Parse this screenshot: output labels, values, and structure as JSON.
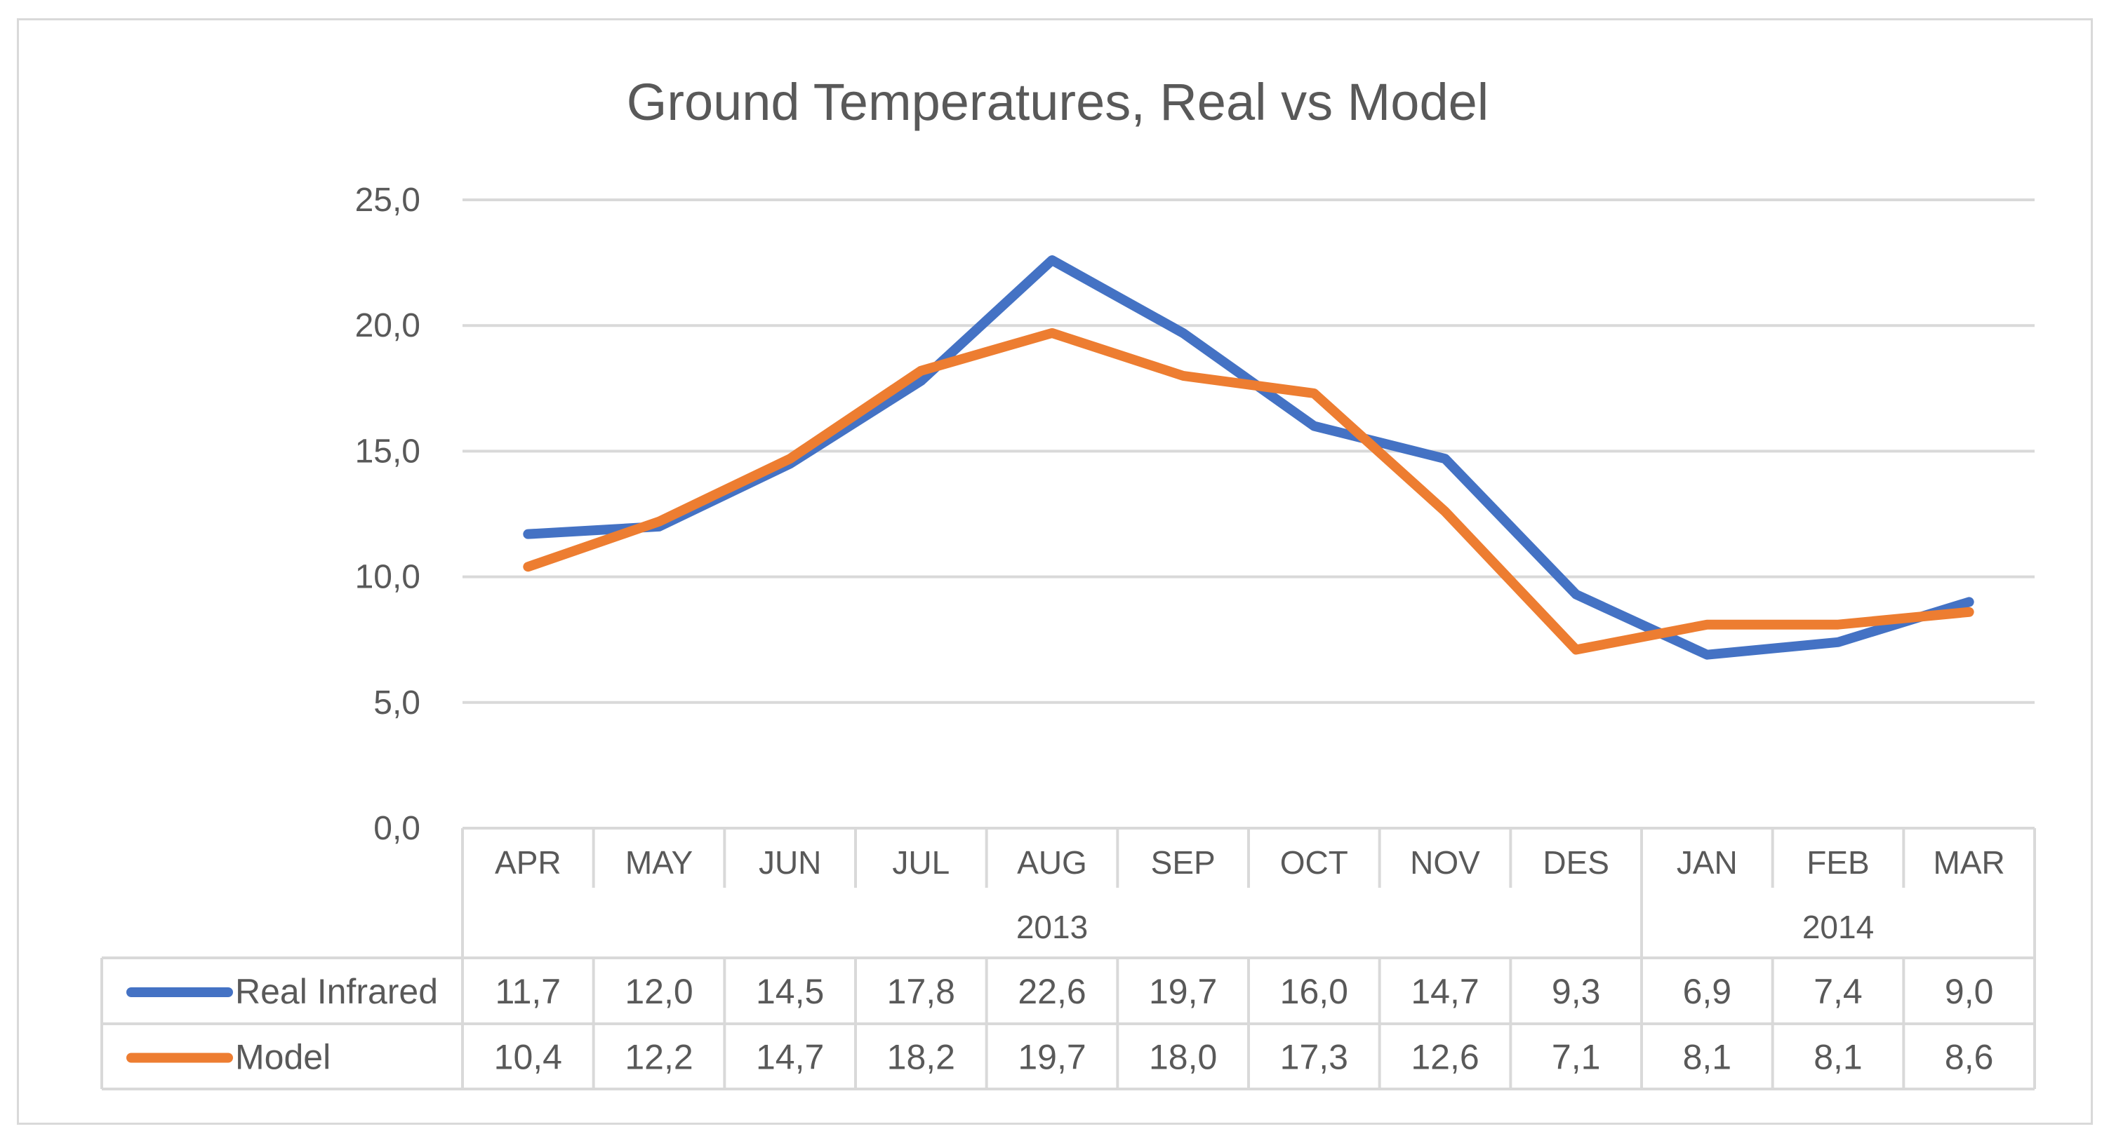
{
  "chart_data": {
    "type": "line",
    "title": "Ground Temperatures, Real vs Model",
    "categories": [
      "APR",
      "MAY",
      "JUN",
      "JUL",
      "AUG",
      "SEP",
      "OCT",
      "NOV",
      "DES",
      "JAN",
      "FEB",
      "MAR"
    ],
    "year_groups": [
      {
        "label": "2013",
        "span": 9
      },
      {
        "label": "2014",
        "span": 3
      }
    ],
    "y_ticks": [
      "0,0",
      "5,0",
      "10,0",
      "15,0",
      "20,0",
      "25,0"
    ],
    "ylim": [
      0,
      25
    ],
    "xlabel": "",
    "ylabel": "",
    "grid": true,
    "legend": "data-table",
    "series": [
      {
        "name": "Real Infrared",
        "color": "#4472c4",
        "values": [
          11.7,
          12.0,
          14.5,
          17.8,
          22.6,
          19.7,
          16.0,
          14.7,
          9.3,
          6.9,
          7.4,
          9.0
        ],
        "labels": [
          "11,7",
          "12,0",
          "14,5",
          "17,8",
          "22,6",
          "19,7",
          "16,0",
          "14,7",
          "9,3",
          "6,9",
          "7,4",
          "9,0"
        ]
      },
      {
        "name": "Model",
        "color": "#ed7d31",
        "values": [
          10.4,
          12.2,
          14.7,
          18.2,
          19.7,
          18.0,
          17.3,
          12.6,
          7.1,
          8.1,
          8.1,
          8.6
        ],
        "labels": [
          "10,4",
          "12,2",
          "14,7",
          "18,2",
          "19,7",
          "18,0",
          "17,3",
          "12,6",
          "7,1",
          "8,1",
          "8,1",
          "8,6"
        ]
      }
    ]
  }
}
